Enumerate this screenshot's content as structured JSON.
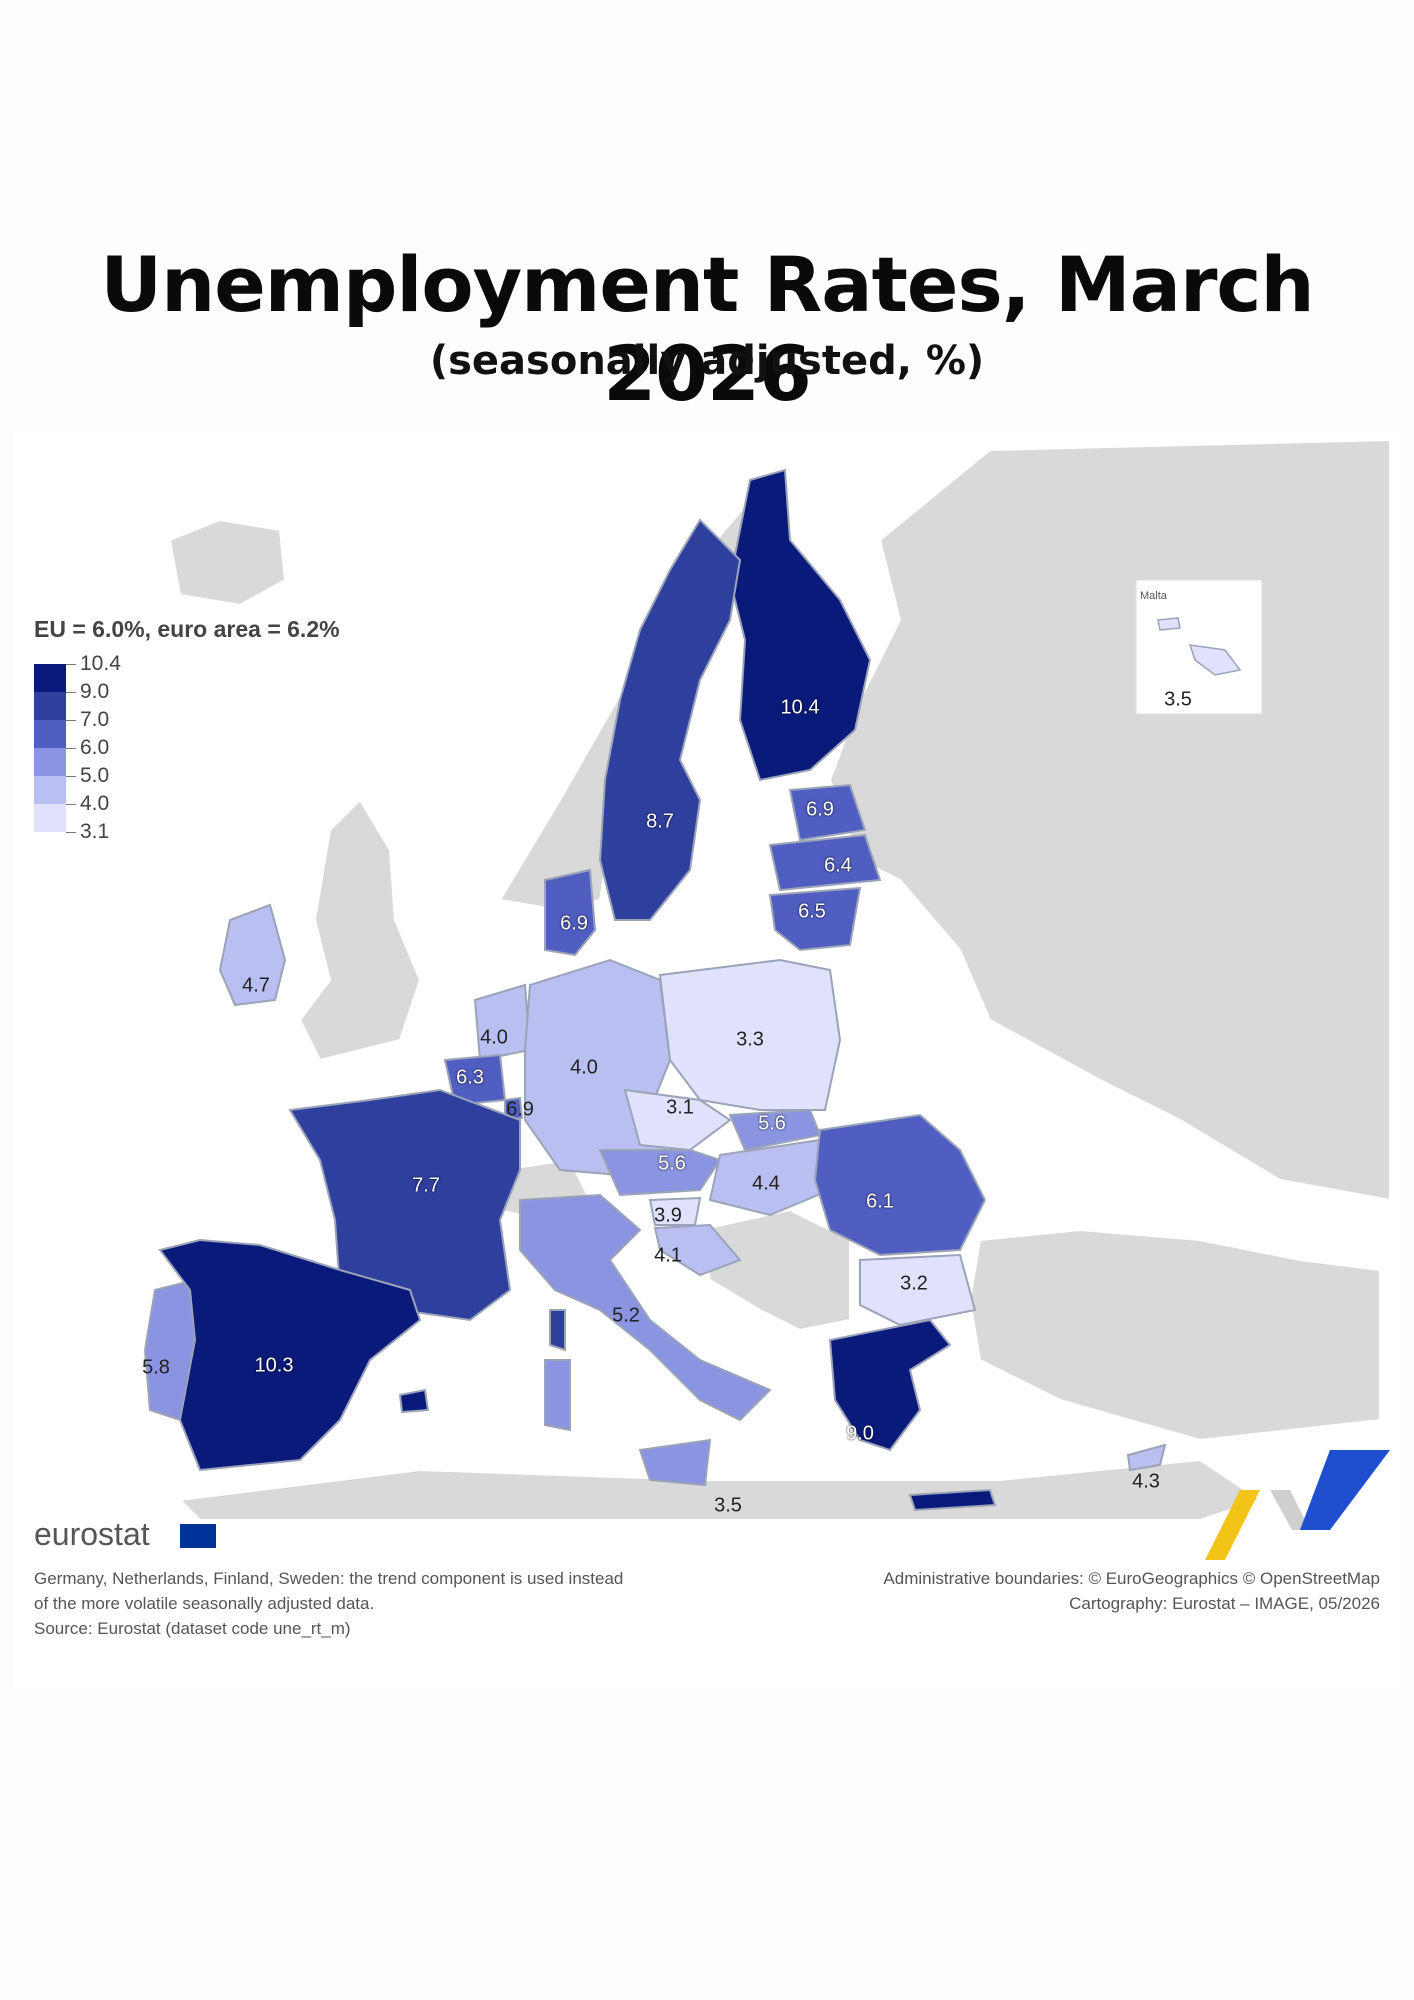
{
  "title": "Unemployment Rates, March 2026",
  "subtitle": "(seasonally adjusted, %)",
  "legend": {
    "title": "EU = 6.0%, euro area = 6.2%",
    "labels": [
      "10.4",
      "9.0",
      "7.0",
      "6.0",
      "5.0",
      "4.0",
      "3.1"
    ],
    "colors": [
      "#0a1a7a",
      "#2e3f9e",
      "#4f5ec0",
      "#8a94e0",
      "#b9bff0",
      "#dfe2fa"
    ]
  },
  "map_data": {
    "type": "choropleth",
    "unit": "%",
    "countries": [
      {
        "value": "10.4",
        "rate": 10.4,
        "color": "#0a1a7a"
      },
      {
        "value": "8.7",
        "rate": 8.7,
        "color": "#2e3f9e"
      },
      {
        "value": "6.9",
        "rate": 6.9,
        "color": "#4f5ec0"
      },
      {
        "value": "6.4",
        "rate": 6.4,
        "color": "#4f5ec0"
      },
      {
        "value": "6.5",
        "rate": 6.5,
        "color": "#4f5ec0"
      },
      {
        "value": "6.9",
        "rate": 6.9,
        "color": "#4f5ec0"
      },
      {
        "value": "4.7",
        "rate": 4.7,
        "color": "#b9bff0"
      },
      {
        "value": "4.0",
        "rate": 4.0,
        "color": "#b9bff0"
      },
      {
        "value": "6.3",
        "rate": 6.3,
        "color": "#4f5ec0"
      },
      {
        "value": "6.9",
        "rate": 6.9,
        "color": "#4f5ec0"
      },
      {
        "value": "4.0",
        "rate": 4.0,
        "color": "#b9bff0"
      },
      {
        "value": "3.3",
        "rate": 3.3,
        "color": "#dfe2fa"
      },
      {
        "value": "3.1",
        "rate": 3.1,
        "color": "#dfe2fa"
      },
      {
        "value": "5.6",
        "rate": 5.6,
        "color": "#8a94e0"
      },
      {
        "value": "5.6",
        "rate": 5.6,
        "color": "#8a94e0"
      },
      {
        "value": "4.4",
        "rate": 4.4,
        "color": "#b9bff0"
      },
      {
        "value": "6.1",
        "rate": 6.1,
        "color": "#4f5ec0"
      },
      {
        "value": "3.9",
        "rate": 3.9,
        "color": "#dfe2fa"
      },
      {
        "value": "4.1",
        "rate": 4.1,
        "color": "#b9bff0"
      },
      {
        "value": "7.7",
        "rate": 7.7,
        "color": "#2e3f9e"
      },
      {
        "value": "5.2",
        "rate": 5.2,
        "color": "#8a94e0"
      },
      {
        "value": "3.2",
        "rate": 3.2,
        "color": "#dfe2fa"
      },
      {
        "value": "5.8",
        "rate": 5.8,
        "color": "#8a94e0"
      },
      {
        "value": "10.3",
        "rate": 10.3,
        "color": "#0a1a7a"
      },
      {
        "value": "9.0",
        "rate": 9.0,
        "color": "#0a1a7a"
      },
      {
        "value": "3.5",
        "rate": 3.5,
        "color": "#dfe2fa"
      },
      {
        "value": "4.3",
        "rate": 4.3,
        "color": "#b9bff0"
      },
      {
        "value": "3.5",
        "rate": 3.5,
        "color": "#dfe2fa"
      }
    ]
  },
  "malta_label": "Malta",
  "brand": "eurostat",
  "footer_left": [
    "Germany, Netherlands, Finland, Sweden: the trend component is used instead",
    "of the more volatile seasonally adjusted data.",
    "Source: Eurostat (dataset code une_rt_m)"
  ],
  "footer_right": [
    "Administrative boundaries: © EuroGeographics © OpenStreetMap",
    "Cartography: Eurostat – IMAGE, 05/2026"
  ]
}
